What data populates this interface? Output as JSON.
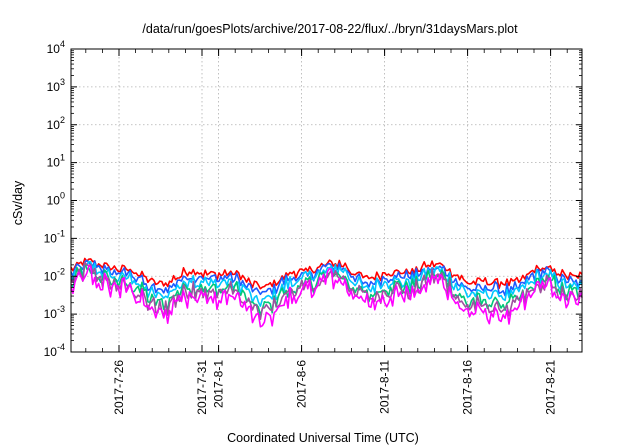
{
  "chart_data": {
    "type": "line",
    "title": "/data/run/goesPlots/archive/2017-08-22/flux/../bryn/31daysMars.plot",
    "xlabel": "Coordinated Universal Time (UTC)",
    "ylabel": "cSv/day",
    "yscale": "log",
    "ylim": [
      0.0001,
      10000
    ],
    "xlim_days": [
      "2017-07-22T22:00",
      "2017-08-24T00:00"
    ],
    "grid": true,
    "ytick_labels": [
      {
        "base": "10",
        "exp": "4"
      },
      {
        "base": "10",
        "exp": "3"
      },
      {
        "base": "10",
        "exp": "2"
      },
      {
        "base": "10",
        "exp": "1"
      },
      {
        "base": "10",
        "exp": "0"
      },
      {
        "base": "10",
        "exp": "-1"
      },
      {
        "base": "10",
        "exp": "-2"
      },
      {
        "base": "10",
        "exp": "-3"
      },
      {
        "base": "10",
        "exp": "-4"
      }
    ],
    "xticks": [
      "2017-7-26",
      "2017-7-31",
      "2017-8-1",
      "2017-8-6",
      "2017-8-11",
      "2017-8-16",
      "2017-8-21"
    ],
    "series": [
      {
        "color": "#ff0000",
        "level": 0.0115
      },
      {
        "color": "#1e5bff",
        "level": 0.0085
      },
      {
        "color": "#00c8ff",
        "level": 0.0065
      },
      {
        "color": "#00c878",
        "level": 0.0045
      },
      {
        "color": "#a050a0",
        "level": 0.0036
      },
      {
        "color": "#ff00ff",
        "level": 0.0027
      }
    ]
  }
}
